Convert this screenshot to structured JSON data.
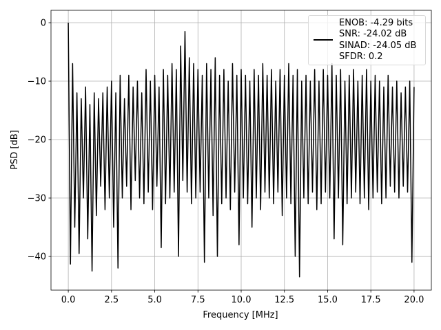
{
  "chart_data": {
    "type": "line",
    "xlabel": "Frequency [MHz]",
    "ylabel": "PSD [dB]",
    "xlim": [
      -1,
      21
    ],
    "ylim": [
      -45.76,
      2.12
    ],
    "xticks": [
      {
        "value": 0,
        "label": "0.0"
      },
      {
        "value": 2.5,
        "label": "2.5"
      },
      {
        "value": 5,
        "label": "5.0"
      },
      {
        "value": 7.5,
        "label": "7.5"
      },
      {
        "value": 10,
        "label": "10.0"
      },
      {
        "value": 12.5,
        "label": "12.5"
      },
      {
        "value": 15,
        "label": "15.0"
      },
      {
        "value": 17.5,
        "label": "17.5"
      },
      {
        "value": 20,
        "label": "20.0"
      }
    ],
    "yticks": [
      {
        "value": 0,
        "label": "0"
      },
      {
        "value": -10,
        "label": "−10"
      },
      {
        "value": -20,
        "label": "−20"
      },
      {
        "value": -30,
        "label": "−30"
      },
      {
        "value": -40,
        "label": "−40"
      }
    ],
    "grid": true,
    "legend": "upper right",
    "x": [
      0,
      0.125,
      0.25,
      0.375,
      0.5,
      0.625,
      0.75,
      0.875,
      1,
      1.125,
      1.25,
      1.375,
      1.5,
      1.625,
      1.75,
      1.875,
      2,
      2.125,
      2.25,
      2.375,
      2.5,
      2.625,
      2.75,
      2.875,
      3,
      3.125,
      3.25,
      3.375,
      3.5,
      3.625,
      3.75,
      3.875,
      4,
      4.125,
      4.25,
      4.375,
      4.5,
      4.625,
      4.75,
      4.875,
      5,
      5.125,
      5.25,
      5.375,
      5.5,
      5.625,
      5.75,
      5.875,
      6,
      6.125,
      6.25,
      6.375,
      6.5,
      6.625,
      6.75,
      6.875,
      7,
      7.125,
      7.25,
      7.375,
      7.5,
      7.625,
      7.75,
      7.875,
      8,
      8.125,
      8.25,
      8.375,
      8.5,
      8.625,
      8.75,
      8.875,
      9,
      9.125,
      9.25,
      9.375,
      9.5,
      9.625,
      9.75,
      9.875,
      10,
      10.125,
      10.25,
      10.375,
      10.5,
      10.625,
      10.75,
      10.875,
      11,
      11.125,
      11.25,
      11.375,
      11.5,
      11.625,
      11.75,
      11.875,
      12,
      12.125,
      12.25,
      12.375,
      12.5,
      12.625,
      12.75,
      12.875,
      13,
      13.125,
      13.25,
      13.375,
      13.5,
      13.625,
      13.75,
      13.875,
      14,
      14.125,
      14.25,
      14.375,
      14.5,
      14.625,
      14.75,
      14.875,
      15,
      15.125,
      15.25,
      15.375,
      15.5,
      15.625,
      15.75,
      15.875,
      16,
      16.125,
      16.25,
      16.375,
      16.5,
      16.625,
      16.75,
      16.875,
      17,
      17.125,
      17.25,
      17.375,
      17.5,
      17.625,
      17.75,
      17.875,
      18,
      18.125,
      18.25,
      18.375,
      18.5,
      18.625,
      18.75,
      18.875,
      19,
      19.125,
      19.25,
      19.375,
      19.5,
      19.625,
      19.75,
      19.875,
      20
    ],
    "series": [
      {
        "name": "ENOB: -4.29 bits\nSNR: -24.02 dB\nSINAD: -24.05 dB\nSFDR: 0.2",
        "color": "#000000",
        "values": [
          0,
          -41.3,
          -7,
          -35,
          -12,
          -39.5,
          -13,
          -30,
          -11,
          -37,
          -14,
          -42.5,
          -12,
          -33,
          -13,
          -28,
          -12,
          -32,
          -11,
          -30,
          -10,
          -35,
          -12,
          -42,
          -9,
          -30,
          -13,
          -28,
          -9,
          -32,
          -11,
          -27,
          -10,
          -30,
          -12,
          -31,
          -8,
          -29,
          -10,
          -32,
          -9,
          -28,
          -11,
          -38.5,
          -8,
          -31,
          -9,
          -30,
          -7,
          -29,
          -8,
          -40,
          -4,
          -27,
          -1.5,
          -29,
          -6,
          -31,
          -7,
          -30,
          -8,
          -29,
          -9,
          -41,
          -7,
          -30,
          -8,
          -33,
          -6,
          -40,
          -9,
          -31,
          -8,
          -30,
          -10,
          -32,
          -7,
          -29,
          -9,
          -38,
          -8,
          -30,
          -9,
          -31,
          -10,
          -35,
          -8,
          -30,
          -9,
          -32,
          -7,
          -29,
          -9,
          -30,
          -8,
          -31,
          -10,
          -29,
          -8,
          -33,
          -9,
          -30,
          -7,
          -31,
          -9,
          -40,
          -8,
          -43.5,
          -10,
          -30,
          -9,
          -31,
          -10,
          -29,
          -8,
          -32,
          -10,
          -31,
          -8,
          -29,
          -9,
          -30,
          -7,
          -37,
          -9,
          -30,
          -8,
          -38,
          -10,
          -31,
          -9,
          -30,
          -8,
          -29,
          -10,
          -31,
          -9,
          -30,
          -8,
          -32,
          -10,
          -30,
          -9,
          -29,
          -10,
          -31,
          -11,
          -30,
          -9,
          -28,
          -11,
          -29,
          -10,
          -30,
          -12,
          -28,
          -11,
          -29,
          -10,
          -41,
          -11
        ]
      }
    ]
  }
}
